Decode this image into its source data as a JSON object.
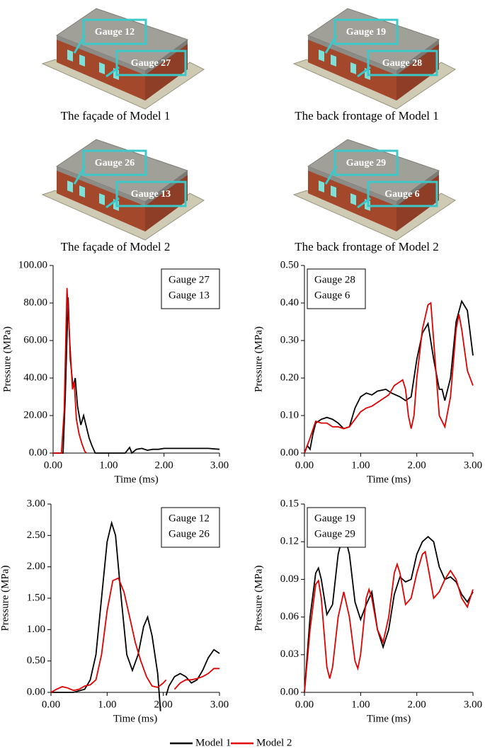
{
  "panels": [
    {
      "caption": "The façade of Model 1",
      "labels": [
        "Gauge 12",
        "Gauge 27"
      ]
    },
    {
      "caption": "The back frontage of Model 1",
      "labels": [
        "Gauge 19",
        "Gauge 28"
      ]
    },
    {
      "caption": "The façade of Model 2",
      "labels": [
        "Gauge 26",
        "Gauge 13"
      ]
    },
    {
      "caption": "The back frontage of Model 2",
      "labels": [
        "Gauge 29",
        "Gauge 6"
      ]
    }
  ],
  "legend": [
    {
      "name": "Model 1",
      "color": "#000000"
    },
    {
      "name": "Model 2",
      "color": "#e00000"
    }
  ],
  "chart_data": [
    {
      "type": "line",
      "xlabel": "Time (ms)",
      "ylabel": "Pressure (MPa)",
      "legend_position": "upper right",
      "xlim": [
        0,
        3
      ],
      "xticks": [
        {
          "value": 0,
          "label": "0.00"
        },
        {
          "value": 1,
          "label": "1.00"
        },
        {
          "value": 2,
          "label": "2.00"
        },
        {
          "value": 3,
          "label": "3.00"
        }
      ],
      "ylim": [
        0,
        100
      ],
      "yticks": [
        {
          "value": 0,
          "label": "0.00"
        },
        {
          "value": 20,
          "label": "20.00"
        },
        {
          "value": 40,
          "label": "40.00"
        },
        {
          "value": 60,
          "label": "60.00"
        },
        {
          "value": 80,
          "label": "80.00"
        },
        {
          "value": 100,
          "label": "100.00"
        }
      ],
      "series": [
        {
          "name": "Gauge 27",
          "color": "#000000",
          "x": [
            0,
            0.18,
            0.22,
            0.27,
            0.31,
            0.36,
            0.4,
            0.44,
            0.5,
            0.55,
            0.6,
            0.65,
            0.7,
            0.76,
            1.3,
            1.38,
            1.42,
            1.5,
            1.6,
            1.7,
            1.8,
            1.9,
            2.0,
            2.2,
            2.5,
            2.8,
            3.0
          ],
          "values": [
            0,
            0,
            30,
            83,
            50,
            35,
            40,
            25,
            15,
            20,
            14,
            8,
            4,
            0,
            0,
            3,
            0,
            2,
            2.5,
            1.5,
            2,
            2,
            2.5,
            2.5,
            2.5,
            2.5,
            2
          ]
        },
        {
          "name": "Gauge 13",
          "color": "#e00000",
          "x": [
            0,
            0.15,
            0.2,
            0.25,
            0.3,
            0.35,
            0.38,
            0.42,
            0.47,
            0.52,
            0.57,
            0.6
          ],
          "values": [
            0,
            0,
            23,
            88,
            60,
            34,
            38,
            18,
            10,
            5,
            1,
            0
          ]
        }
      ]
    },
    {
      "type": "line",
      "xlabel": "Time (ms)",
      "ylabel": "Pressure (MPa)",
      "legend_position": "upper left",
      "xlim": [
        0,
        3
      ],
      "xticks": [
        {
          "value": 0,
          "label": "0.00"
        },
        {
          "value": 1,
          "label": "1.00"
        },
        {
          "value": 2,
          "label": "2.00"
        },
        {
          "value": 3,
          "label": "3.00"
        }
      ],
      "ylim": [
        0,
        0.5
      ],
      "yticks": [
        {
          "value": 0,
          "label": "0.00"
        },
        {
          "value": 0.1,
          "label": "0.10"
        },
        {
          "value": 0.2,
          "label": "0.20"
        },
        {
          "value": 0.3,
          "label": "0.30"
        },
        {
          "value": 0.4,
          "label": "0.40"
        },
        {
          "value": 0.5,
          "label": "0.50"
        }
      ],
      "series": [
        {
          "name": "Gauge 28",
          "color": "#000000",
          "x": [
            0,
            0.05,
            0.1,
            0.15,
            0.2,
            0.3,
            0.4,
            0.5,
            0.6,
            0.7,
            0.8,
            0.9,
            1.0,
            1.1,
            1.2,
            1.3,
            1.45,
            1.55,
            1.7,
            1.8,
            1.9,
            2.0,
            2.1,
            2.2,
            2.3,
            2.4,
            2.45,
            2.5,
            2.6,
            2.7,
            2.8,
            2.9,
            3.0
          ],
          "values": [
            0,
            0.02,
            0.01,
            0.05,
            0.08,
            0.09,
            0.095,
            0.09,
            0.08,
            0.065,
            0.07,
            0.12,
            0.15,
            0.16,
            0.155,
            0.165,
            0.17,
            0.16,
            0.15,
            0.14,
            0.15,
            0.25,
            0.32,
            0.345,
            0.25,
            0.17,
            0.17,
            0.14,
            0.2,
            0.35,
            0.405,
            0.38,
            0.26
          ]
        },
        {
          "name": "Gauge 6",
          "color": "#e00000",
          "x": [
            0,
            0.1,
            0.2,
            0.3,
            0.4,
            0.5,
            0.6,
            0.7,
            0.8,
            0.9,
            1.0,
            1.1,
            1.2,
            1.3,
            1.4,
            1.5,
            1.6,
            1.7,
            1.75,
            1.8,
            1.85,
            1.9,
            1.95,
            2.0,
            2.1,
            2.2,
            2.25,
            2.3,
            2.4,
            2.5,
            2.6,
            2.7,
            2.75,
            2.8,
            2.9,
            3.0
          ],
          "values": [
            0,
            0.04,
            0.085,
            0.08,
            0.08,
            0.07,
            0.07,
            0.065,
            0.07,
            0.09,
            0.11,
            0.12,
            0.125,
            0.135,
            0.145,
            0.155,
            0.18,
            0.19,
            0.195,
            0.17,
            0.1,
            0.065,
            0.1,
            0.2,
            0.33,
            0.395,
            0.4,
            0.3,
            0.1,
            0.07,
            0.15,
            0.33,
            0.37,
            0.33,
            0.22,
            0.18
          ]
        }
      ]
    },
    {
      "type": "line",
      "xlabel": "Time (ms)",
      "ylabel": "Pressure (MPa)",
      "legend_position": "upper right",
      "xlim": [
        0,
        3
      ],
      "xticks": [
        {
          "value": 0,
          "label": "0.00"
        },
        {
          "value": 1,
          "label": "1.00"
        },
        {
          "value": 2,
          "label": "2.00"
        },
        {
          "value": 3,
          "label": "3.00"
        }
      ],
      "ylim": [
        0,
        3
      ],
      "yticks": [
        {
          "value": 0,
          "label": "0.00"
        },
        {
          "value": 0.5,
          "label": "0.50"
        },
        {
          "value": 1,
          "label": "1.00"
        },
        {
          "value": 1.5,
          "label": "1.50"
        },
        {
          "value": 2,
          "label": "2.00"
        },
        {
          "value": 2.5,
          "label": "2.50"
        },
        {
          "value": 3,
          "label": "3.00"
        }
      ],
      "series": [
        {
          "name": "Gauge 12",
          "color": "#000000",
          "x": [
            0,
            0.2,
            0.4,
            0.6,
            0.7,
            0.8,
            0.9,
            1.0,
            1.08,
            1.15,
            1.25,
            1.35,
            1.45,
            1.55,
            1.65,
            1.72,
            1.8,
            1.9,
            1.95,
            null,
            2.05,
            2.1,
            2.2,
            2.3,
            2.4,
            2.5,
            2.6,
            2.7,
            2.8,
            2.9,
            3.0
          ],
          "values": [
            0,
            0,
            0,
            0.05,
            0.2,
            0.6,
            1.5,
            2.4,
            2.7,
            2.5,
            1.5,
            0.6,
            0.35,
            0.6,
            1.05,
            1.2,
            0.9,
            0.3,
            -0.3,
            null,
            -0.05,
            0.1,
            0.25,
            0.3,
            0.25,
            0.15,
            0.2,
            0.35,
            0.55,
            0.68,
            0.62
          ]
        },
        {
          "name": "Gauge 26",
          "color": "#e00000",
          "x": [
            0,
            0.1,
            0.2,
            0.3,
            0.4,
            0.5,
            0.6,
            0.7,
            0.8,
            0.9,
            1.0,
            1.1,
            1.2,
            1.3,
            1.4,
            1.5,
            1.6,
            1.7,
            1.8,
            1.9,
            2.0,
            2.05,
            null,
            2.2,
            2.3,
            2.4,
            2.5,
            2.6,
            2.7,
            2.8,
            2.9,
            3.0
          ],
          "values": [
            0,
            0.05,
            0.09,
            0.07,
            0.03,
            0.05,
            0.1,
            0.12,
            0.2,
            0.6,
            1.3,
            1.78,
            1.82,
            1.6,
            1.2,
            0.8,
            0.5,
            0.25,
            0.1,
            0.08,
            0.15,
            0.2,
            null,
            0.05,
            0.15,
            0.2,
            0.2,
            0.22,
            0.25,
            0.3,
            0.38,
            0.38
          ]
        }
      ]
    },
    {
      "type": "line",
      "xlabel": "Time (ms)",
      "ylabel": "Pressure (MPa)",
      "legend_position": "upper left",
      "xlim": [
        0,
        3
      ],
      "xticks": [
        {
          "value": 0,
          "label": "0.00"
        },
        {
          "value": 1,
          "label": "1.00"
        },
        {
          "value": 2,
          "label": "2.00"
        },
        {
          "value": 3,
          "label": "3.00"
        }
      ],
      "ylim": [
        0,
        0.15
      ],
      "yticks": [
        {
          "value": 0,
          "label": "0.00"
        },
        {
          "value": 0.03,
          "label": "0.03"
        },
        {
          "value": 0.06,
          "label": "0.06"
        },
        {
          "value": 0.09,
          "label": "0.09"
        },
        {
          "value": 0.12,
          "label": "0.12"
        },
        {
          "value": 0.15,
          "label": "0.15"
        }
      ],
      "series": [
        {
          "name": "Gauge 19",
          "color": "#000000",
          "x": [
            0,
            0.1,
            0.2,
            0.25,
            0.3,
            0.4,
            0.5,
            0.6,
            0.7,
            0.8,
            0.9,
            1.0,
            1.1,
            1.2,
            1.3,
            1.4,
            1.5,
            1.6,
            1.7,
            1.8,
            1.9,
            2.0,
            2.1,
            2.2,
            2.3,
            2.4,
            2.5,
            2.6,
            2.7,
            2.8,
            2.9,
            3.0
          ],
          "values": [
            0,
            0.06,
            0.095,
            0.099,
            0.09,
            0.062,
            0.07,
            0.11,
            0.128,
            0.11,
            0.072,
            0.058,
            0.07,
            0.08,
            0.05,
            0.036,
            0.05,
            0.078,
            0.092,
            0.088,
            0.09,
            0.11,
            0.12,
            0.124,
            0.12,
            0.1,
            0.09,
            0.092,
            0.088,
            0.078,
            0.072,
            0.08
          ]
        },
        {
          "name": "Gauge 29",
          "color": "#e00000",
          "x": [
            0,
            0.1,
            0.2,
            0.25,
            0.3,
            0.4,
            0.45,
            0.5,
            0.6,
            0.7,
            0.8,
            0.9,
            0.95,
            1.0,
            1.1,
            1.15,
            1.2,
            1.3,
            1.4,
            1.5,
            1.6,
            1.65,
            1.7,
            1.8,
            1.9,
            2.0,
            2.1,
            2.15,
            2.2,
            2.3,
            2.4,
            2.5,
            2.6,
            2.7,
            2.8,
            2.9,
            3.0
          ],
          "values": [
            0,
            0.05,
            0.086,
            0.089,
            0.075,
            0.02,
            0.011,
            0.02,
            0.06,
            0.08,
            0.06,
            0.025,
            0.019,
            0.03,
            0.075,
            0.082,
            0.075,
            0.05,
            0.04,
            0.06,
            0.095,
            0.102,
            0.095,
            0.07,
            0.075,
            0.095,
            0.11,
            0.112,
            0.1,
            0.075,
            0.08,
            0.09,
            0.097,
            0.09,
            0.075,
            0.068,
            0.082
          ]
        }
      ]
    }
  ]
}
